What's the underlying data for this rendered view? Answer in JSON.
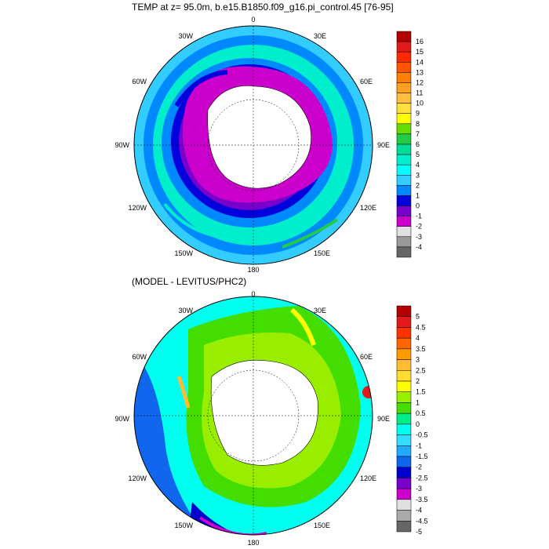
{
  "top_panel": {
    "title": "TEMP at z=  95.0m, b.e15.B1850.f09_g16.pi_control.45 [76-95]",
    "lon_labels": [
      "0",
      "30E",
      "60E",
      "90E",
      "120E",
      "150E",
      "180",
      "150W",
      "120W",
      "90W",
      "60W",
      "30W"
    ],
    "colorbar": {
      "labels": [
        "16",
        "15",
        "14",
        "13",
        "12",
        "11",
        "10",
        "9",
        "8",
        "7",
        "6",
        "5",
        "4",
        "3",
        "2",
        "1",
        "0",
        "-1",
        "-2",
        "-3",
        "-4"
      ],
      "colors": [
        "#b30000",
        "#e31a1c",
        "#ff2a00",
        "#ff5500",
        "#ff8000",
        "#ffa020",
        "#ffc040",
        "#ffe040",
        "#ffff00",
        "#66dd00",
        "#22cc44",
        "#00dd99",
        "#00eecc",
        "#00ffff",
        "#33ccff",
        "#0088ff",
        "#0000dd",
        "#7700cc",
        "#cc00cc",
        "#e0e0e0",
        "#999999",
        "#666666"
      ]
    }
  },
  "bottom_panel": {
    "title": "(MODEL - LEVITUS/PHC2)",
    "lon_labels": [
      "0",
      "30E",
      "60E",
      "90E",
      "120E",
      "150E",
      "180",
      "150W",
      "120W",
      "90W",
      "60W",
      "30W"
    ],
    "colorbar": {
      "labels": [
        "5",
        "4.5",
        "4",
        "3.5",
        "3",
        "2.5",
        "2",
        "1.5",
        "1",
        "0.5",
        "0",
        "-0.5",
        "-1",
        "-1.5",
        "-2",
        "-2.5",
        "-3",
        "-3.5",
        "-4",
        "-4.5",
        "-5"
      ],
      "colors": [
        "#b30000",
        "#e31a1c",
        "#ff3300",
        "#ff6600",
        "#ff9900",
        "#ffbb33",
        "#ffdd33",
        "#ffff00",
        "#99ee00",
        "#44dd00",
        "#00ee88",
        "#00ffee",
        "#33ddff",
        "#22aaff",
        "#1166ee",
        "#0000cc",
        "#7700cc",
        "#cc00cc",
        "#e0e0e0",
        "#aaaaaa",
        "#666666"
      ]
    }
  }
}
